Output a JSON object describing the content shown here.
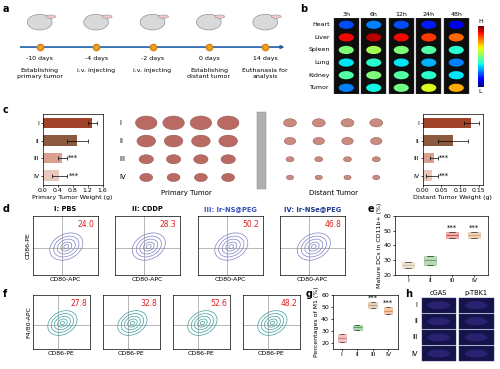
{
  "panel_labels": [
    "a",
    "b",
    "c",
    "d",
    "e",
    "f",
    "g",
    "h"
  ],
  "timeline": {
    "events": [
      {
        "day": "-10 days",
        "label": "Establishing primary tumor"
      },
      {
        "day": "-4 days",
        "label": "i.v. injecting"
      },
      {
        "day": "-2 days",
        "label": "i.v. injecting"
      },
      {
        "day": "0 days",
        "label": "Establishing distant tumor"
      },
      {
        "day": "14 days",
        "label": "Euthanasia for analysis"
      }
    ]
  },
  "imaging": {
    "organs": [
      "Heart",
      "Liver",
      "Spleen",
      "Lung",
      "Kidney",
      "Tumor"
    ],
    "times": [
      "3h",
      "6h",
      "12h",
      "24h",
      "48h"
    ],
    "scale_high": "H",
    "scale_low": "L"
  },
  "tumor_photos": {
    "groups": [
      "I",
      "II",
      "III",
      "IV"
    ],
    "primary_label": "Primary Tumor",
    "distant_label": "Distant Tumor"
  },
  "groups": [
    {
      "name": "I: PBS",
      "color": "#000000"
    },
    {
      "name": "II: CDDP",
      "color": "#000000"
    },
    {
      "name": "III: Ir-NS@PEG",
      "color": "#2f4fbf"
    },
    {
      "name": "IV: Ir-NSe@PEG",
      "color": "#1a3590"
    }
  ],
  "flow": [
    {
      "xlabel": "CD80-APC",
      "ylabel": "CD86-PE",
      "color": "#7f7fc8",
      "percentages": [
        24.0,
        28.3,
        50.2,
        46.8
      ]
    },
    {
      "xlabel": "CD86-PE",
      "ylabel": "F4/80-APC",
      "color": "#3a9ea0",
      "percentages": [
        27.8,
        32.8,
        52.6,
        48.2
      ]
    }
  ],
  "microscopy": {
    "columns": [
      "cGAS",
      "p-TBK1"
    ],
    "rows": [
      "I",
      "II",
      "III",
      "IV"
    ]
  },
  "chart_data": [
    {
      "type": "bar",
      "orientation": "horizontal",
      "xlabel": "Primary Tumor Weight (g)",
      "categories": [
        "I",
        "II",
        "III",
        "IV"
      ],
      "values": [
        1.32,
        0.92,
        0.52,
        0.45
      ],
      "errors": [
        0.12,
        0.28,
        0.12,
        0.2
      ],
      "colors": [
        "#a0432a",
        "#8c5a3e",
        "#d9a08f",
        "#e9c9bc"
      ],
      "xlim": [
        0,
        1.6
      ],
      "xticks": [
        0.0,
        0.4,
        0.8,
        1.2,
        1.6
      ],
      "annotations": [
        {
          "category": "III",
          "text": "***"
        },
        {
          "category": "IV",
          "text": "***"
        }
      ]
    },
    {
      "type": "bar",
      "orientation": "horizontal",
      "xlabel": "Distant Tumor Weight (g)",
      "categories": [
        "I",
        "II",
        "III",
        "IV"
      ],
      "values": [
        0.13,
        0.08,
        0.03,
        0.025
      ],
      "errors": [
        0.02,
        0.04,
        0.01,
        0.015
      ],
      "colors": [
        "#a0432a",
        "#8c5a3e",
        "#d9a08f",
        "#e9c9bc"
      ],
      "xlim": [
        0,
        0.16
      ],
      "xticks": [
        {
          "value": 0,
          "label": "0.00"
        },
        {
          "value": 0.05,
          "label": "0.05"
        },
        {
          "value": 0.1,
          "label": "0.10"
        },
        {
          "value": 0.15,
          "label": "0.15"
        }
      ],
      "annotations": [
        {
          "category": "III",
          "text": "***"
        },
        {
          "category": "IV",
          "text": "***"
        }
      ]
    },
    {
      "type": "box",
      "ylabel": "Mature DCs in CD11b+ (%)",
      "categories": [
        "I",
        "II",
        "III",
        "IV"
      ],
      "values": [
        27,
        30,
        47,
        47
      ],
      "errors": [
        2,
        3,
        2,
        2
      ],
      "colors": [
        "#d8c3a5",
        "#6aaa64",
        "#d9534f",
        "#d9a36a"
      ],
      "ylim": [
        20,
        60
      ],
      "yticks": [
        20,
        30,
        40,
        50,
        60
      ],
      "annotations": [
        {
          "category": "III",
          "text": "***"
        },
        {
          "category": "IV",
          "text": "***"
        }
      ]
    },
    {
      "type": "box",
      "ylabel": "Percentages of M1 (%)",
      "categories": [
        "I",
        "II",
        "III",
        "IV"
      ],
      "values": [
        24,
        33,
        52,
        47
      ],
      "errors": [
        3,
        2,
        2.5,
        3
      ],
      "colors": [
        "#e07a7a",
        "#5aa55a",
        "#c8a27c",
        "#e08c50"
      ],
      "ylim": [
        15,
        60
      ],
      "yticks": [
        20,
        30,
        40,
        50,
        60
      ],
      "annotations": [
        {
          "category": "III",
          "text": "***"
        },
        {
          "category": "IV",
          "text": "***"
        }
      ]
    }
  ]
}
